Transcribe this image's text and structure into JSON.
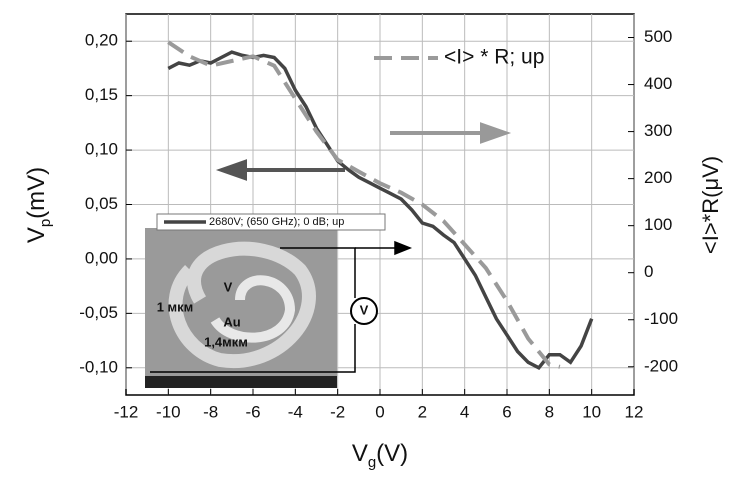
{
  "chart_data": {
    "type": "line",
    "xlabel": [
      "V",
      "g",
      "(V)"
    ],
    "ylabel": [
      "V",
      "p",
      "(mV)"
    ],
    "y2label": "<I>*R(μV)",
    "xlim": [
      -12,
      12
    ],
    "xticks": [
      -12,
      -10,
      -8,
      -6,
      -4,
      -2,
      0,
      2,
      4,
      6,
      8,
      10,
      12
    ],
    "ylim": [
      -0.125,
      0.225
    ],
    "yticks": [
      {
        "value": -0.1,
        "label": "-0,10"
      },
      {
        "value": -0.05,
        "label": "-0,05"
      },
      {
        "value": 0,
        "label": "0,00"
      },
      {
        "value": 0.05,
        "label": "0,05"
      },
      {
        "value": 0.1,
        "label": "0,10"
      },
      {
        "value": 0.15,
        "label": "0,15"
      },
      {
        "value": 0.2,
        "label": "0,20"
      }
    ],
    "y2lim": [
      -260,
      550
    ],
    "y2ticks": [
      -200,
      -100,
      0,
      100,
      200,
      300,
      400,
      500
    ],
    "grid": true,
    "series": [
      {
        "name": "2680V;  (650 GHz); 0 dB; up",
        "color": "#444444",
        "dash": false,
        "x": [
          -10,
          -9.5,
          -9,
          -8.5,
          -8,
          -7.5,
          -7,
          -6.5,
          -6,
          -5.5,
          -5,
          -4.5,
          -4,
          -3.5,
          -3,
          -2.5,
          -2,
          -1.5,
          -1,
          -0.5,
          0,
          0.5,
          1,
          1.5,
          2,
          2.5,
          3,
          3.5,
          4,
          4.5,
          5,
          5.5,
          6,
          6.5,
          7,
          7.5,
          8,
          8.5,
          9,
          9.5,
          10
        ],
        "values": [
          0.175,
          0.18,
          0.178,
          0.182,
          0.18,
          0.185,
          0.19,
          0.187,
          0.185,
          0.187,
          0.185,
          0.175,
          0.155,
          0.14,
          0.12,
          0.105,
          0.09,
          0.082,
          0.075,
          0.07,
          0.065,
          0.06,
          0.055,
          0.045,
          0.033,
          0.03,
          0.022,
          0.015,
          0.0,
          -0.015,
          -0.035,
          -0.055,
          -0.07,
          -0.085,
          -0.095,
          -0.1,
          -0.088,
          -0.088,
          -0.095,
          -0.08,
          -0.055
        ]
      },
      {
        "name": "<I> * R; up",
        "color": "#9a9a9a",
        "dash": true,
        "axis": "y2",
        "x": [
          -10,
          -9,
          -8,
          -7,
          -6,
          -5,
          -4,
          -3,
          -2,
          -1,
          0,
          1,
          2,
          3,
          4,
          5,
          6,
          7,
          8,
          8.5
        ],
        "values": [
          490,
          460,
          440,
          450,
          460,
          440,
          370,
          300,
          240,
          215,
          190,
          170,
          145,
          110,
          60,
          10,
          -60,
          -140,
          -195,
          -200
        ]
      }
    ],
    "annotations": [
      "V",
      "1 мкм",
      "Au",
      "1,4мкм",
      "V"
    ]
  }
}
